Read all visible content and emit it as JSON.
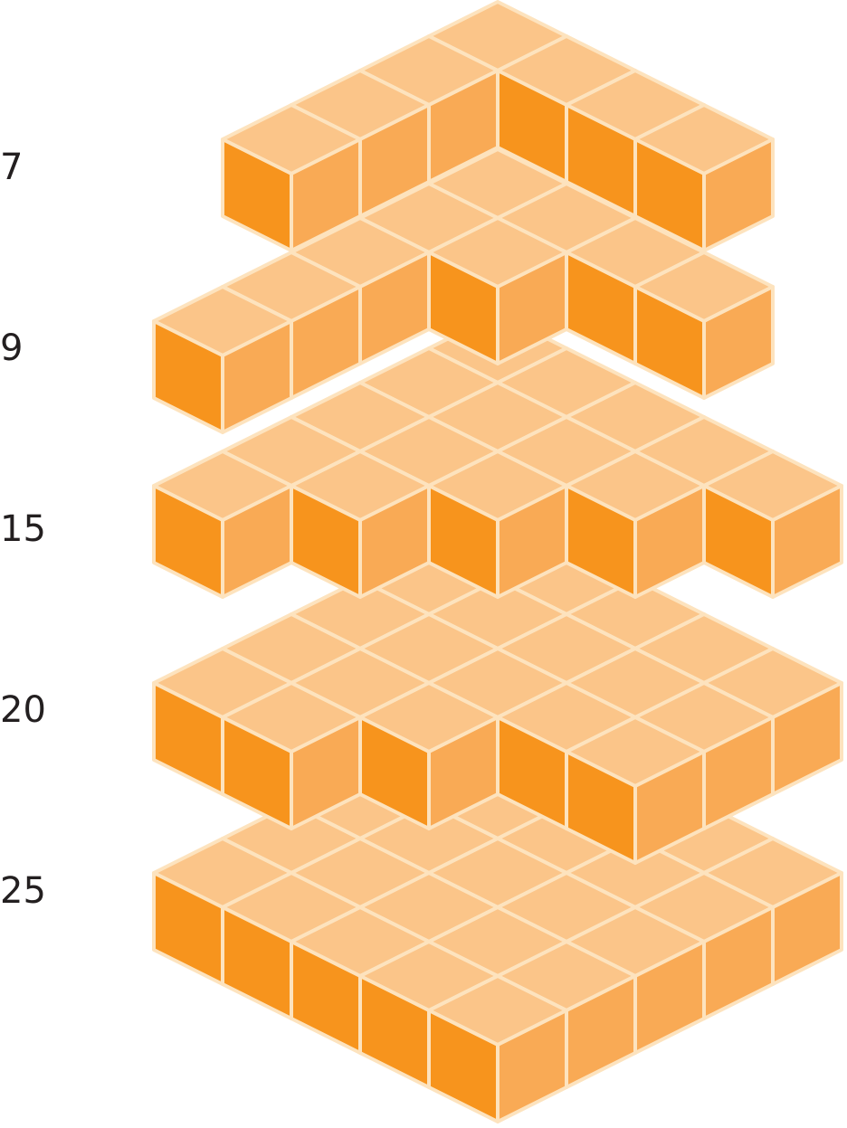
{
  "layers": [
    {
      "label": "7"
    },
    {
      "label": "9"
    },
    {
      "label": "15"
    },
    {
      "label": "20"
    },
    {
      "label": "25"
    }
  ]
}
